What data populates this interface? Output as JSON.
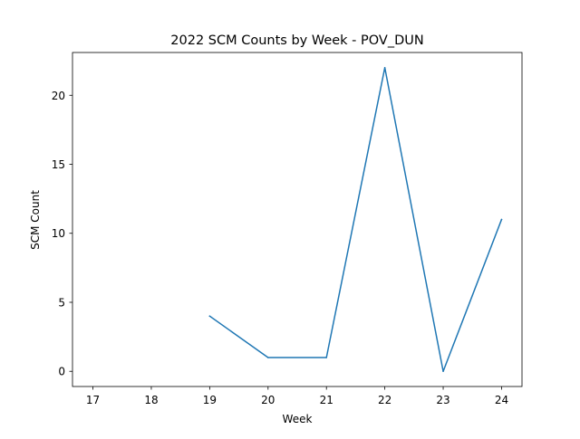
{
  "chart_data": {
    "type": "line",
    "title": "2022 SCM Counts by Week - POV_DUN",
    "xlabel": "Week",
    "ylabel": "SCM Count",
    "x_ticks": [
      17,
      18,
      19,
      20,
      21,
      22,
      23,
      24
    ],
    "y_ticks": [
      0,
      5,
      10,
      15,
      20
    ],
    "xlim": [
      16.65,
      24.35
    ],
    "ylim": [
      -1.1,
      23.1
    ],
    "grid": false,
    "series": [
      {
        "color": "#1f77b4",
        "x": [
          19,
          20,
          21,
          22,
          23,
          24
        ],
        "y": [
          4,
          1,
          1,
          22,
          0,
          11
        ]
      }
    ]
  }
}
